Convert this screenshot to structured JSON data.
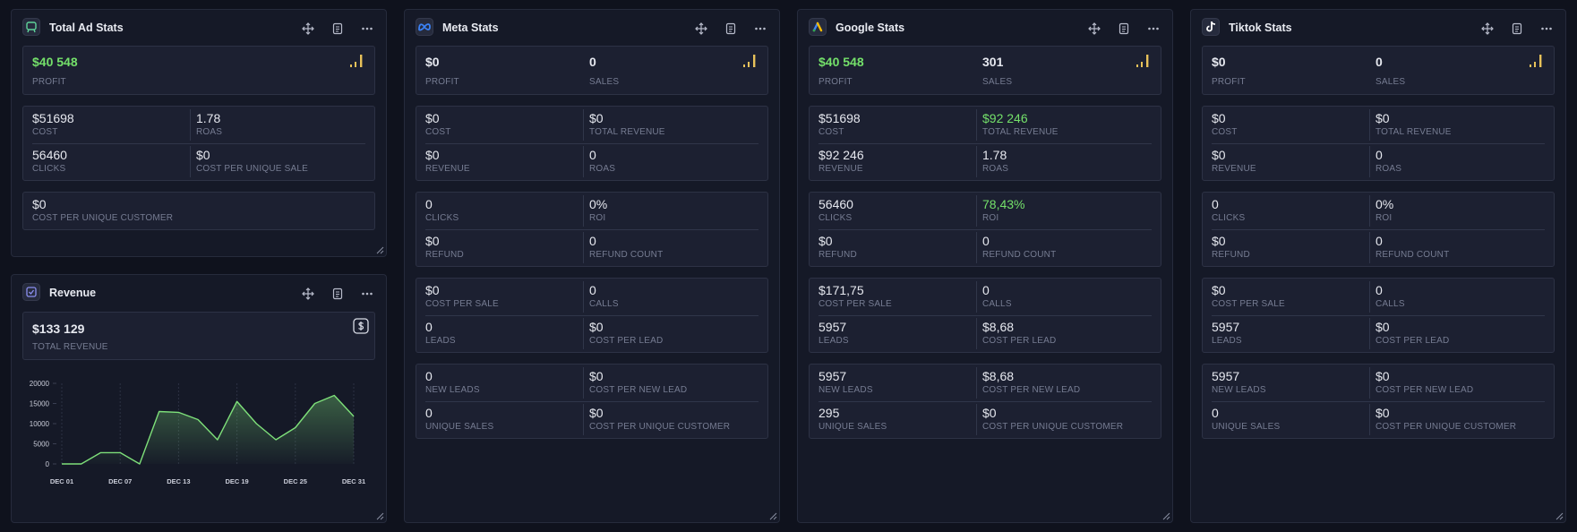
{
  "panels": [
    {
      "title": "Total Ad Stats",
      "headline": [
        {
          "value": "$40 548",
          "label": "PROFIT",
          "color": "#74e06a"
        }
      ],
      "groups": [
        [
          [
            {
              "value": "$51698",
              "label": "COST"
            },
            {
              "value": "1.78",
              "label": "ROAS"
            }
          ],
          [
            {
              "value": "56460",
              "label": "CLICKS"
            },
            {
              "value": "$0",
              "label": "COST PER UNIQUE SALE"
            }
          ]
        ],
        [
          [
            {
              "value": "$0",
              "label": "COST PER UNIQUE CUSTOMER"
            }
          ]
        ]
      ]
    },
    {
      "title": "Meta Stats",
      "headline": [
        {
          "value": "$0",
          "label": "PROFIT"
        },
        {
          "value": "0",
          "label": "SALES"
        }
      ],
      "groups": [
        [
          [
            {
              "value": "$0",
              "label": "COST"
            },
            {
              "value": "$0",
              "label": "TOTAL REVENUE"
            }
          ],
          [
            {
              "value": "$0",
              "label": "REVENUE"
            },
            {
              "value": "0",
              "label": "ROAS"
            }
          ]
        ],
        [
          [
            {
              "value": "0",
              "label": "CLICKS"
            },
            {
              "value": "0%",
              "label": "ROI"
            }
          ],
          [
            {
              "value": "$0",
              "label": "REFUND"
            },
            {
              "value": "0",
              "label": "REFUND COUNT"
            }
          ]
        ],
        [
          [
            {
              "value": "$0",
              "label": "COST PER SALE"
            },
            {
              "value": "0",
              "label": "CALLS"
            }
          ],
          [
            {
              "value": "0",
              "label": "LEADS"
            },
            {
              "value": "$0",
              "label": "COST PER LEAD"
            }
          ]
        ],
        [
          [
            {
              "value": "0",
              "label": "NEW LEADS"
            },
            {
              "value": "$0",
              "label": "COST PER NEW LEAD"
            }
          ],
          [
            {
              "value": "0",
              "label": "UNIQUE SALES"
            },
            {
              "value": "$0",
              "label": "COST PER UNIQUE CUSTOMER"
            }
          ]
        ]
      ]
    },
    {
      "title": "Google Stats",
      "headline": [
        {
          "value": "$40 548",
          "label": "PROFIT",
          "color": "#74e06a"
        },
        {
          "value": "301",
          "label": "SALES"
        }
      ],
      "groups": [
        [
          [
            {
              "value": "$51698",
              "label": "COST"
            },
            {
              "value": "$92 246",
              "label": "TOTAL REVENUE",
              "color": "#74e06a"
            }
          ],
          [
            {
              "value": "$92 246",
              "label": "REVENUE"
            },
            {
              "value": "1.78",
              "label": "ROAS"
            }
          ]
        ],
        [
          [
            {
              "value": "56460",
              "label": "CLICKS"
            },
            {
              "value": "78,43%",
              "label": "ROI",
              "color": "#74e06a"
            }
          ],
          [
            {
              "value": "$0",
              "label": "REFUND"
            },
            {
              "value": "0",
              "label": "REFUND COUNT"
            }
          ]
        ],
        [
          [
            {
              "value": "$171,75",
              "label": "COST PER SALE"
            },
            {
              "value": "0",
              "label": "CALLS"
            }
          ],
          [
            {
              "value": "5957",
              "label": "LEADS"
            },
            {
              "value": "$8,68",
              "label": "COST PER LEAD"
            }
          ]
        ],
        [
          [
            {
              "value": "5957",
              "label": "NEW LEADS"
            },
            {
              "value": "$8,68",
              "label": "COST PER NEW LEAD"
            }
          ],
          [
            {
              "value": "295",
              "label": "UNIQUE SALES"
            },
            {
              "value": "$0",
              "label": "COST PER UNIQUE CUSTOMER"
            }
          ]
        ]
      ]
    },
    {
      "title": "Tiktok Stats",
      "headline": [
        {
          "value": "$0",
          "label": "PROFIT"
        },
        {
          "value": "0",
          "label": "SALES"
        }
      ],
      "groups": [
        [
          [
            {
              "value": "$0",
              "label": "COST"
            },
            {
              "value": "$0",
              "label": "TOTAL REVENUE"
            }
          ],
          [
            {
              "value": "$0",
              "label": "REVENUE"
            },
            {
              "value": "0",
              "label": "ROAS"
            }
          ]
        ],
        [
          [
            {
              "value": "0",
              "label": "CLICKS"
            },
            {
              "value": "0%",
              "label": "ROI"
            }
          ],
          [
            {
              "value": "$0",
              "label": "REFUND"
            },
            {
              "value": "0",
              "label": "REFUND COUNT"
            }
          ]
        ],
        [
          [
            {
              "value": "$0",
              "label": "COST PER SALE"
            },
            {
              "value": "0",
              "label": "CALLS"
            }
          ],
          [
            {
              "value": "5957",
              "label": "LEADS"
            },
            {
              "value": "$0",
              "label": "COST PER LEAD"
            }
          ]
        ],
        [
          [
            {
              "value": "5957",
              "label": "NEW LEADS"
            },
            {
              "value": "$0",
              "label": "COST PER NEW LEAD"
            }
          ],
          [
            {
              "value": "0",
              "label": "UNIQUE SALES"
            },
            {
              "value": "$0",
              "label": "COST PER UNIQUE CUSTOMER"
            }
          ]
        ]
      ]
    }
  ],
  "revenue": {
    "title": "Revenue",
    "value": "$133 129",
    "label": "TOTAL REVENUE"
  },
  "chart_data": {
    "type": "line",
    "categories": [
      "DEC 01",
      null,
      null,
      "DEC 07",
      null,
      null,
      "DEC 13",
      null,
      null,
      "DEC 19",
      null,
      null,
      "DEC 25",
      null,
      null,
      "DEC 31"
    ],
    "values": [
      0,
      0,
      2800,
      2800,
      0,
      13000,
      12800,
      11000,
      6000,
      15500,
      10000,
      6000,
      9000,
      15000,
      17000,
      11800
    ],
    "color": "#7ee07a",
    "ylim": [
      0,
      20000
    ],
    "yticks": [
      0,
      5000,
      10000,
      15000,
      20000
    ],
    "grid": "x"
  }
}
